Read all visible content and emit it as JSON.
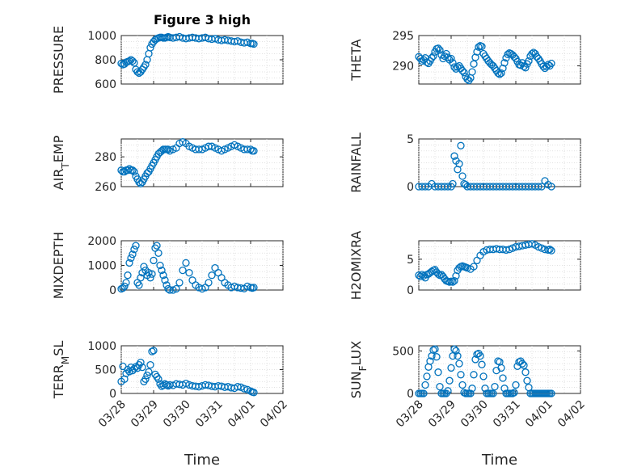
{
  "chart_data": [
    {
      "type": "scatter",
      "title": "Figure 3 high",
      "ylabel": "PRESSURE",
      "ylim": [
        600,
        1000
      ],
      "yticks": [
        "600",
        "800",
        "1000"
      ],
      "xlim": [
        "03/28",
        "04/02"
      ],
      "xticks": [],
      "grid": true,
      "x_days": [
        0.0,
        0.05,
        0.1,
        0.15,
        0.2,
        0.25,
        0.3,
        0.35,
        0.4,
        0.45,
        0.5,
        0.55,
        0.6,
        0.65,
        0.7,
        0.75,
        0.8,
        0.85,
        0.9,
        0.95,
        1.0,
        1.05,
        1.1,
        1.15,
        1.2,
        1.25,
        1.3,
        1.35,
        1.4,
        1.45,
        1.5,
        1.6,
        1.7,
        1.8,
        1.9,
        2.0,
        2.1,
        2.2,
        2.3,
        2.4,
        2.5,
        2.6,
        2.7,
        2.8,
        2.9,
        3.0,
        3.1,
        3.2,
        3.3,
        3.4,
        3.5,
        3.6,
        3.7,
        3.8,
        3.9,
        4.0,
        4.05,
        4.1
      ],
      "values": [
        770,
        760,
        765,
        780,
        785,
        790,
        800,
        790,
        775,
        720,
        700,
        690,
        700,
        720,
        740,
        760,
        800,
        850,
        900,
        930,
        950,
        965,
        975,
        980,
        985,
        985,
        980,
        980,
        985,
        990,
        985,
        980,
        985,
        990,
        980,
        975,
        980,
        985,
        980,
        975,
        980,
        985,
        975,
        970,
        975,
        965,
        960,
        965,
        960,
        955,
        950,
        955,
        945,
        940,
        945,
        935,
        935,
        930
      ]
    },
    {
      "type": "scatter",
      "ylabel": "THETA",
      "ylim": [
        287,
        295
      ],
      "yticks": [
        "290",
        "295"
      ],
      "xlim": [
        "03/28",
        "04/02"
      ],
      "xticks": [],
      "grid": true,
      "x_days": [
        0.0,
        0.05,
        0.1,
        0.15,
        0.2,
        0.25,
        0.3,
        0.35,
        0.4,
        0.45,
        0.5,
        0.55,
        0.6,
        0.65,
        0.7,
        0.75,
        0.8,
        0.85,
        0.9,
        0.95,
        1.0,
        1.05,
        1.1,
        1.15,
        1.2,
        1.25,
        1.3,
        1.35,
        1.4,
        1.45,
        1.5,
        1.55,
        1.6,
        1.65,
        1.7,
        1.75,
        1.8,
        1.85,
        1.9,
        1.95,
        2.0,
        2.05,
        2.1,
        2.15,
        2.2,
        2.25,
        2.3,
        2.35,
        2.4,
        2.45,
        2.5,
        2.55,
        2.6,
        2.65,
        2.7,
        2.75,
        2.8,
        2.85,
        2.9,
        2.95,
        3.0,
        3.05,
        3.1,
        3.15,
        3.2,
        3.25,
        3.3,
        3.35,
        3.4,
        3.45,
        3.5,
        3.55,
        3.6,
        3.65,
        3.7,
        3.75,
        3.8,
        3.85,
        3.9,
        3.95,
        4.0,
        4.05,
        4.1
      ],
      "values": [
        291.5,
        291.2,
        290.8,
        291.0,
        291.3,
        290.6,
        290.4,
        290.8,
        291.3,
        291.6,
        292.3,
        292.8,
        292.9,
        292.6,
        291.8,
        291.2,
        291.6,
        292.0,
        291.4,
        291.0,
        291.2,
        290.5,
        289.8,
        289.5,
        289.8,
        290.0,
        289.6,
        289.2,
        288.9,
        288.2,
        287.8,
        287.6,
        288.0,
        289.0,
        290.3,
        291.4,
        292.3,
        293.1,
        293.3,
        293.2,
        292.0,
        291.6,
        291.2,
        290.8,
        290.5,
        290.2,
        290.0,
        289.6,
        289.2,
        288.8,
        288.6,
        288.8,
        289.6,
        290.5,
        291.3,
        291.9,
        292.1,
        292.0,
        291.8,
        291.5,
        291.2,
        290.7,
        290.2,
        290.1,
        290.5,
        289.9,
        289.7,
        290.3,
        290.8,
        291.6,
        292.0,
        292.2,
        292.0,
        291.5,
        291.2,
        290.8,
        290.3,
        289.9,
        289.6,
        289.9,
        290.2,
        290.0,
        290.4
      ]
    },
    {
      "type": "scatter",
      "ylabel": "AIR_TEMP",
      "ylim": [
        260,
        292
      ],
      "yticks": [
        "260",
        "280"
      ],
      "xlim": [
        "03/28",
        "04/02"
      ],
      "xticks": [],
      "grid": true,
      "x_days": [
        0.0,
        0.05,
        0.1,
        0.15,
        0.2,
        0.25,
        0.3,
        0.35,
        0.4,
        0.45,
        0.5,
        0.55,
        0.6,
        0.65,
        0.7,
        0.75,
        0.8,
        0.85,
        0.9,
        0.95,
        1.0,
        1.05,
        1.1,
        1.15,
        1.2,
        1.25,
        1.3,
        1.35,
        1.4,
        1.45,
        1.5,
        1.6,
        1.7,
        1.8,
        1.9,
        2.0,
        2.1,
        2.2,
        2.3,
        2.4,
        2.5,
        2.6,
        2.7,
        2.8,
        2.9,
        3.0,
        3.1,
        3.2,
        3.3,
        3.4,
        3.5,
        3.6,
        3.7,
        3.8,
        3.9,
        4.0,
        4.05,
        4.1
      ],
      "values": [
        271,
        270,
        270,
        271,
        271,
        272,
        271,
        271,
        270,
        267,
        265,
        263,
        262,
        263,
        265,
        267,
        269,
        270,
        272,
        274,
        276,
        278,
        280,
        282,
        283,
        284,
        285,
        285,
        285,
        285,
        284,
        285,
        286,
        289,
        290,
        289,
        287,
        286,
        285,
        285,
        285,
        286,
        287,
        287,
        286,
        285,
        284,
        285,
        286,
        287,
        288,
        287,
        286,
        285,
        285,
        285,
        284,
        284
      ]
    },
    {
      "type": "scatter",
      "ylabel": "RAINFALL",
      "ylim": [
        0,
        5
      ],
      "yticks": [
        "0",
        "5"
      ],
      "xlim": [
        "03/28",
        "04/02"
      ],
      "xticks": [],
      "grid": true,
      "x_days": [
        0.0,
        0.1,
        0.2,
        0.3,
        0.4,
        0.5,
        0.6,
        0.7,
        0.8,
        0.9,
        1.0,
        1.05,
        1.1,
        1.15,
        1.2,
        1.25,
        1.3,
        1.35,
        1.4,
        1.45,
        1.5,
        1.6,
        1.7,
        1.8,
        1.9,
        2.0,
        2.1,
        2.2,
        2.3,
        2.4,
        2.5,
        2.6,
        2.7,
        2.8,
        2.9,
        3.0,
        3.1,
        3.2,
        3.3,
        3.4,
        3.5,
        3.6,
        3.7,
        3.8,
        3.9,
        4.0,
        4.1
      ],
      "values": [
        0,
        0,
        0,
        0,
        0.3,
        0,
        0,
        0,
        0,
        0,
        0,
        0.3,
        3.2,
        2.7,
        1.8,
        2.4,
        4.3,
        1.1,
        0.3,
        0.2,
        0,
        0,
        0,
        0,
        0,
        0,
        0,
        0,
        0,
        0,
        0,
        0,
        0,
        0,
        0,
        0,
        0,
        0,
        0,
        0,
        0,
        0,
        0,
        0,
        0.6,
        0.2,
        0
      ]
    },
    {
      "type": "scatter",
      "ylabel": "MIXDEPTH",
      "ylim": [
        0,
        2000
      ],
      "yticks": [
        "0",
        "1000",
        "2000"
      ],
      "xlim": [
        "03/28",
        "04/02"
      ],
      "xticks": [],
      "grid": true,
      "x_days": [
        0.0,
        0.05,
        0.1,
        0.15,
        0.2,
        0.25,
        0.3,
        0.35,
        0.4,
        0.45,
        0.5,
        0.55,
        0.6,
        0.65,
        0.7,
        0.75,
        0.8,
        0.85,
        0.9,
        0.95,
        1.0,
        1.05,
        1.1,
        1.15,
        1.2,
        1.25,
        1.3,
        1.35,
        1.4,
        1.45,
        1.5,
        1.6,
        1.7,
        1.8,
        1.9,
        2.0,
        2.1,
        2.2,
        2.3,
        2.4,
        2.5,
        2.6,
        2.7,
        2.8,
        2.9,
        3.0,
        3.1,
        3.2,
        3.3,
        3.4,
        3.5,
        3.6,
        3.7,
        3.8,
        3.9,
        4.0,
        4.05,
        4.1
      ],
      "values": [
        50,
        80,
        150,
        300,
        600,
        1100,
        1300,
        1450,
        1650,
        1800,
        300,
        200,
        500,
        700,
        950,
        800,
        600,
        700,
        500,
        650,
        1200,
        1700,
        1800,
        1500,
        1000,
        800,
        600,
        400,
        200,
        50,
        0,
        0,
        50,
        300,
        800,
        1100,
        700,
        400,
        200,
        100,
        50,
        100,
        300,
        600,
        900,
        700,
        500,
        300,
        200,
        100,
        150,
        100,
        80,
        60,
        150,
        100,
        80,
        100
      ]
    },
    {
      "type": "scatter",
      "ylabel": "H2OMIXRA",
      "ylim": [
        0,
        8
      ],
      "yticks": [
        "0",
        "5"
      ],
      "xlim": [
        "03/28",
        "04/02"
      ],
      "xticks": [],
      "grid": true,
      "x_days": [
        0.0,
        0.05,
        0.1,
        0.15,
        0.2,
        0.25,
        0.3,
        0.35,
        0.4,
        0.45,
        0.5,
        0.55,
        0.6,
        0.65,
        0.7,
        0.75,
        0.8,
        0.85,
        0.9,
        0.95,
        1.0,
        1.05,
        1.1,
        1.15,
        1.2,
        1.25,
        1.3,
        1.35,
        1.4,
        1.45,
        1.5,
        1.6,
        1.7,
        1.8,
        1.9,
        2.0,
        2.1,
        2.2,
        2.3,
        2.4,
        2.5,
        2.6,
        2.7,
        2.8,
        2.9,
        3.0,
        3.1,
        3.2,
        3.3,
        3.4,
        3.5,
        3.6,
        3.7,
        3.8,
        3.9,
        4.0,
        4.05,
        4.1
      ],
      "values": [
        2.4,
        2.2,
        2.5,
        2.3,
        2.0,
        2.5,
        2.6,
        2.8,
        3.0,
        3.2,
        3.3,
        2.9,
        2.6,
        2.4,
        2.5,
        2.2,
        1.8,
        1.5,
        1.4,
        1.3,
        1.4,
        1.3,
        1.5,
        2.3,
        3.2,
        3.6,
        3.8,
        3.9,
        3.8,
        3.7,
        3.6,
        3.4,
        3.8,
        4.8,
        5.6,
        6.2,
        6.5,
        6.6,
        6.6,
        6.7,
        6.6,
        6.6,
        6.5,
        6.6,
        6.8,
        7.0,
        7.1,
        7.2,
        7.3,
        7.4,
        7.5,
        7.3,
        7.0,
        6.8,
        6.6,
        6.5,
        6.6,
        6.4
      ]
    },
    {
      "type": "scatter",
      "ylabel": "TERR_MSL",
      "ylim": [
        0,
        1000
      ],
      "yticks": [
        "0",
        "500",
        "1000"
      ],
      "xlim": [
        "03/28",
        "04/02"
      ],
      "xticks": [
        "03/28",
        "03/29",
        "03/30",
        "03/31",
        "04/01",
        "04/02"
      ],
      "xlabel": "Time",
      "grid": true,
      "x_days": [
        0.0,
        0.05,
        0.1,
        0.15,
        0.2,
        0.25,
        0.3,
        0.35,
        0.4,
        0.45,
        0.5,
        0.55,
        0.6,
        0.65,
        0.7,
        0.75,
        0.8,
        0.85,
        0.9,
        0.95,
        1.0,
        1.05,
        1.1,
        1.15,
        1.2,
        1.25,
        1.3,
        1.35,
        1.4,
        1.45,
        1.5,
        1.6,
        1.7,
        1.8,
        1.9,
        2.0,
        2.1,
        2.2,
        2.3,
        2.4,
        2.5,
        2.6,
        2.7,
        2.8,
        2.9,
        3.0,
        3.1,
        3.2,
        3.3,
        3.4,
        3.5,
        3.6,
        3.7,
        3.8,
        3.9,
        4.0,
        4.05,
        4.1
      ],
      "values": [
        250,
        570,
        300,
        420,
        500,
        460,
        550,
        480,
        520,
        560,
        530,
        600,
        650,
        550,
        250,
        300,
        380,
        450,
        600,
        880,
        900,
        400,
        350,
        300,
        200,
        150,
        170,
        200,
        180,
        160,
        180,
        170,
        200,
        190,
        180,
        210,
        180,
        160,
        150,
        140,
        160,
        180,
        170,
        150,
        140,
        160,
        150,
        130,
        140,
        120,
        110,
        140,
        130,
        100,
        80,
        50,
        30,
        20
      ]
    },
    {
      "type": "scatter",
      "ylabel": "SUN_FLUX",
      "ylim": [
        0,
        560
      ],
      "yticks": [
        "0",
        "500"
      ],
      "xlim": [
        "03/28",
        "04/02"
      ],
      "xticks": [
        "03/28",
        "03/29",
        "03/30",
        "03/31",
        "04/01",
        "04/02"
      ],
      "xlabel": "Time",
      "grid": true,
      "x_days": [
        0.0,
        0.05,
        0.1,
        0.15,
        0.2,
        0.25,
        0.3,
        0.35,
        0.4,
        0.45,
        0.5,
        0.55,
        0.6,
        0.65,
        0.7,
        0.75,
        0.8,
        0.85,
        0.9,
        0.95,
        1.0,
        1.05,
        1.1,
        1.15,
        1.2,
        1.25,
        1.3,
        1.35,
        1.4,
        1.45,
        1.5,
        1.55,
        1.6,
        1.65,
        1.7,
        1.75,
        1.8,
        1.85,
        1.9,
        1.95,
        2.0,
        2.05,
        2.1,
        2.15,
        2.2,
        2.25,
        2.3,
        2.35,
        2.4,
        2.45,
        2.5,
        2.55,
        2.6,
        2.65,
        2.7,
        2.75,
        2.8,
        2.85,
        2.9,
        2.95,
        3.0,
        3.05,
        3.1,
        3.15,
        3.2,
        3.25,
        3.3,
        3.35,
        3.4,
        3.45,
        3.5,
        3.55,
        3.6,
        3.65,
        3.7,
        3.75,
        3.8,
        3.85,
        3.9,
        3.95,
        4.0,
        4.05,
        4.1
      ],
      "values": [
        0,
        0,
        0,
        0,
        100,
        200,
        310,
        380,
        440,
        510,
        520,
        430,
        250,
        80,
        0,
        0,
        0,
        0,
        30,
        150,
        300,
        440,
        520,
        500,
        440,
        350,
        220,
        100,
        10,
        0,
        0,
        0,
        0,
        60,
        220,
        400,
        460,
        470,
        440,
        340,
        200,
        60,
        0,
        0,
        0,
        0,
        0,
        80,
        270,
        380,
        370,
        300,
        180,
        60,
        0,
        0,
        0,
        0,
        0,
        10,
        100,
        320,
        370,
        380,
        350,
        330,
        250,
        150,
        70,
        0,
        0,
        0,
        0,
        0,
        0,
        0,
        0,
        0,
        0,
        0,
        0,
        0,
        0
      ]
    }
  ]
}
